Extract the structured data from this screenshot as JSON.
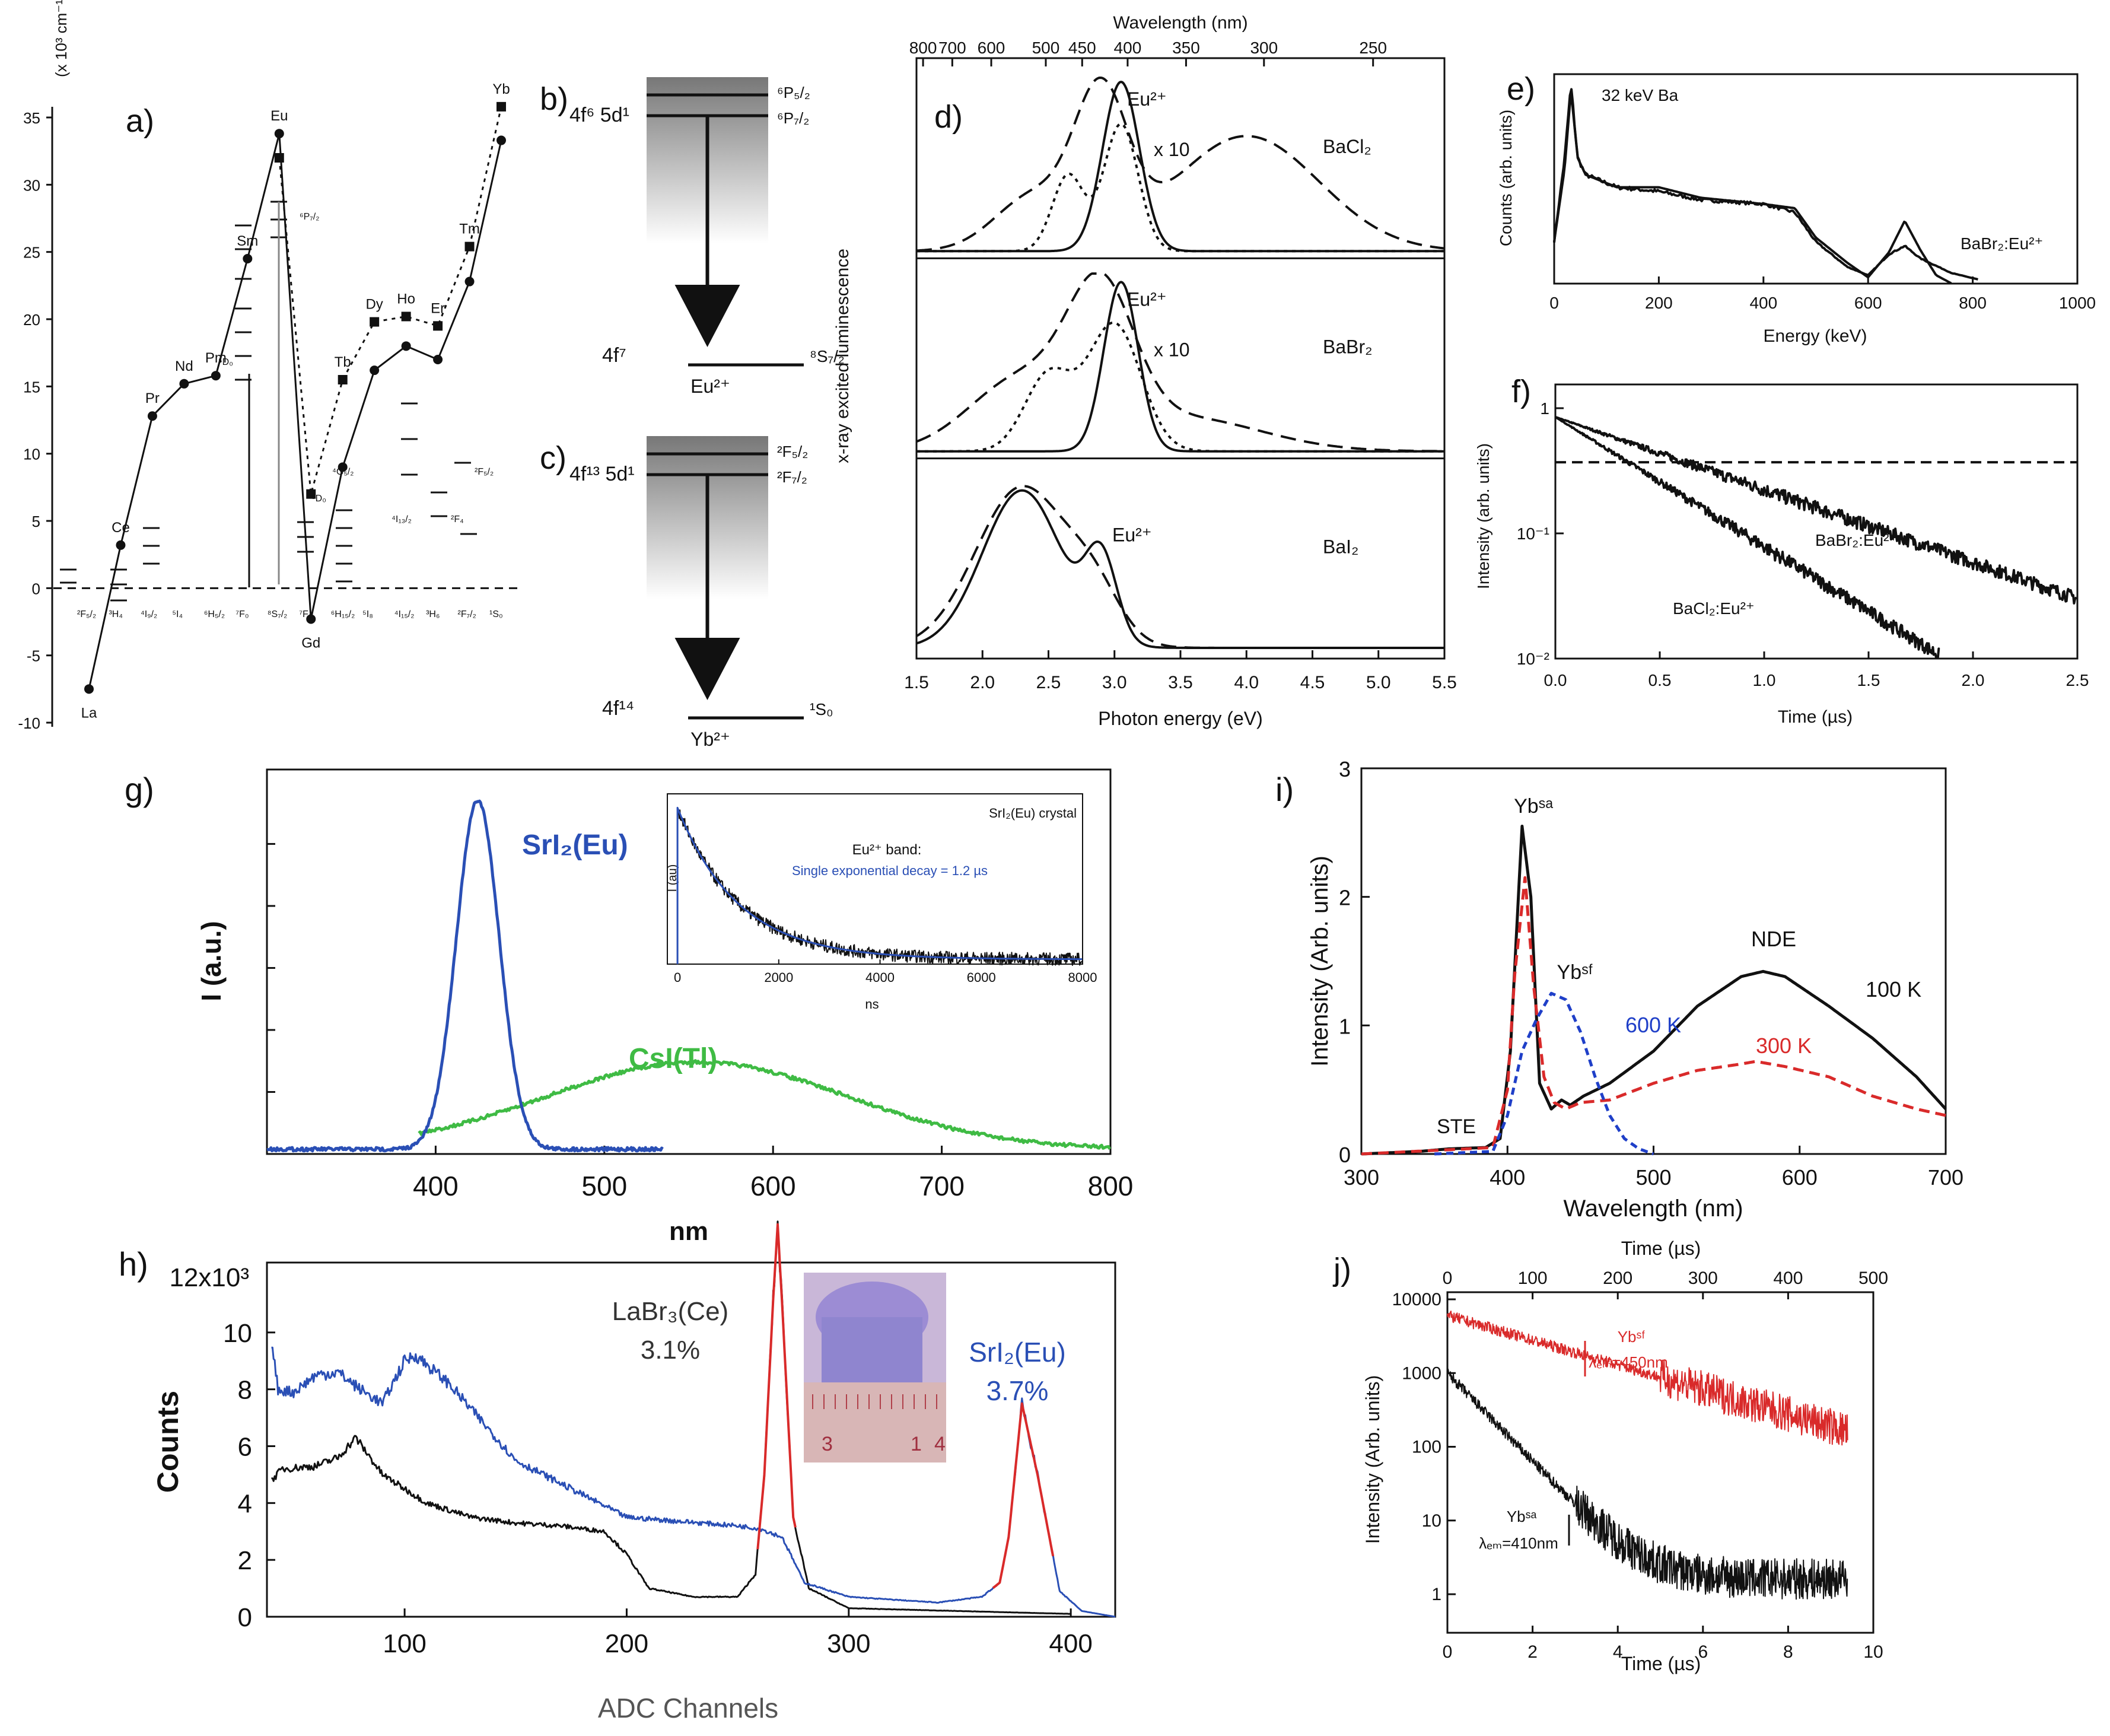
{
  "colors": {
    "black": "#111111",
    "blue": "#2a4fb5",
    "green": "#3fbb44",
    "red": "#d92a2a",
    "dblue": "#1f3fc8"
  },
  "chart_data": [
    {
      "id": "a",
      "type": "line",
      "panel": "a)",
      "ylabel": "(x 10³ cm⁻¹)",
      "ylim": [
        -10,
        37
      ],
      "yticks": [
        -10,
        -5,
        0,
        5,
        10,
        15,
        20,
        25,
        30,
        35
      ],
      "series": [
        {
          "name": "circles",
          "marker": "circle",
          "style": "solid",
          "x": [
            0,
            1,
            2,
            3,
            4,
            5,
            6,
            7,
            8,
            9,
            10,
            11,
            12,
            13
          ],
          "values": [
            -7.5,
            3.2,
            12.8,
            15.2,
            15.8,
            24.5,
            33.8,
            -2.3,
            9.0,
            16.2,
            18.0,
            17.0,
            22.8,
            33.3
          ]
        },
        {
          "name": "squares",
          "marker": "square",
          "style": "dotted",
          "x": [
            6,
            7,
            8,
            9,
            10,
            11,
            12,
            13
          ],
          "values": [
            32.0,
            7.0,
            15.5,
            19.8,
            20.2,
            19.5,
            25.4,
            35.8
          ]
        }
      ],
      "elements": [
        "La",
        "Ce",
        "Pr",
        "Nd",
        "Pm",
        "Sm",
        "Eu",
        "Gd",
        "Tb",
        "Dy",
        "Ho",
        "Er",
        "Tm",
        "Yb"
      ],
      "ground_terms": [
        "²F₅/₂",
        "³H₄",
        "⁴I₉/₂",
        "⁵I₄",
        "⁶H₅/₂",
        "⁷F₀",
        "⁸S₇/₂",
        "⁷F₆",
        "⁶H₁₅/₂",
        "⁵I₈",
        "⁴I₁₅/₂",
        "³H₆",
        "²F₇/₂",
        "¹S₀"
      ],
      "level_labels": [
        "⁶P₇/₂",
        "⁵D₀",
        "⁵D₀",
        "⁴G₅/₂",
        "²F₅/₂",
        "⁴I₁₃/₂",
        "²F₄"
      ]
    },
    {
      "id": "b",
      "type": "diagram",
      "panel": "b)",
      "upper": "4f⁶ 5d¹",
      "lower": "4f⁷",
      "ion": "Eu²⁺",
      "top_levels": [
        "⁶P₅/₂",
        "⁶P₇/₂"
      ],
      "ground": "⁸S₇/₂"
    },
    {
      "id": "c",
      "type": "diagram",
      "panel": "c)",
      "upper": "4f¹³ 5d¹",
      "lower": "4f¹⁴",
      "ion": "Yb²⁺",
      "top_levels": [
        "²F₅/₂",
        "²F₇/₂"
      ],
      "ground": "¹S₀"
    },
    {
      "id": "d",
      "type": "line",
      "panel": "d)",
      "title": "Wavelength  (nm)",
      "xlabel": "Photon energy  (eV)",
      "ylabel": "x-ray excited luminescence",
      "xlim": [
        1.5,
        5.5
      ],
      "xticks": [
        1.5,
        2.0,
        2.5,
        3.0,
        3.5,
        4.0,
        4.5,
        5.0,
        5.5
      ],
      "top_ticks": [
        800,
        700,
        600,
        500,
        450,
        400,
        350,
        300,
        250
      ],
      "subplots": [
        {
          "compound": "BaCl₂",
          "peak_label": "Eu²⁺",
          "scale_label": "x 10",
          "series": [
            {
              "name": "solid",
              "peaks": [
                [
                  3.05,
                  0.14,
                  1.0
                ]
              ]
            },
            {
              "name": "dashed",
              "peaks": [
                [
                  2.4,
                  0.3,
                  0.33
                ],
                [
                  2.9,
                  0.2,
                  0.85
                ],
                [
                  4.0,
                  0.55,
                  0.68
                ]
              ]
            },
            {
              "name": "dotted",
              "peaks": [
                [
                  2.65,
                  0.12,
                  0.45
                ],
                [
                  3.05,
                  0.13,
                  0.75
                ]
              ]
            }
          ]
        },
        {
          "compound": "BaBr₂",
          "peak_label": "Eu²⁺",
          "scale_label": "x 10",
          "series": [
            {
              "name": "solid",
              "peaks": [
                [
                  3.05,
                  0.13,
                  1.0
                ]
              ]
            },
            {
              "name": "dashed",
              "peaks": [
                [
                  2.3,
                  0.4,
                  0.42
                ],
                [
                  2.9,
                  0.25,
                  0.8
                ],
                [
                  3.5,
                  0.6,
                  0.2
                ]
              ]
            },
            {
              "name": "dotted",
              "peaks": [
                [
                  2.5,
                  0.18,
                  0.45
                ],
                [
                  3.0,
                  0.2,
                  0.75
                ]
              ]
            }
          ]
        },
        {
          "compound": "BaI₂",
          "peak_label": "Eu²⁺",
          "series": [
            {
              "name": "solid",
              "peaks": [
                [
                  2.3,
                  0.3,
                  0.95
                ],
                [
                  2.9,
                  0.12,
                  0.5
                ]
              ]
            },
            {
              "name": "dashed",
              "peaks": [
                [
                  2.3,
                  0.35,
                  0.97
                ],
                [
                  2.85,
                  0.2,
                  0.25
                ]
              ]
            }
          ]
        }
      ]
    },
    {
      "id": "e",
      "type": "line",
      "panel": "e)",
      "xlabel": "Energy  (keV)",
      "ylabel": "Counts  (arb. units)",
      "xlim": [
        0,
        1000
      ],
      "xticks": [
        0,
        200,
        400,
        600,
        800,
        1000
      ],
      "annotations": [
        "32 keV Ba",
        "BaBr₂:Eu²⁺"
      ],
      "series": [
        {
          "name": "measured",
          "x": [
            0,
            20,
            32,
            45,
            60,
            120,
            200,
            280,
            400,
            460,
            500,
            560,
            600,
            640,
            670,
            700,
            760,
            810
          ],
          "values": [
            0.2,
            0.6,
            0.95,
            0.6,
            0.52,
            0.46,
            0.44,
            0.4,
            0.38,
            0.34,
            0.2,
            0.08,
            0.04,
            0.14,
            0.18,
            0.12,
            0.05,
            0.02
          ]
        },
        {
          "name": "simulated",
          "x": [
            0,
            20,
            32,
            45,
            60,
            120,
            200,
            280,
            400,
            460,
            500,
            560,
            600,
            640,
            670,
            700,
            730,
            760
          ],
          "values": [
            0.2,
            0.55,
            0.92,
            0.6,
            0.52,
            0.46,
            0.46,
            0.41,
            0.38,
            0.36,
            0.22,
            0.1,
            0.03,
            0.15,
            0.3,
            0.16,
            0.04,
            0.0
          ]
        }
      ]
    },
    {
      "id": "f",
      "type": "line",
      "panel": "f)",
      "xlabel": "Time  (µs)",
      "ylabel": "Intensity  (arb. units)",
      "xlim": [
        0,
        2.5
      ],
      "yscale": "log",
      "ylim": [
        0.01,
        1
      ],
      "xticks": [
        0.0,
        0.5,
        1.0,
        1.5,
        2.0,
        2.5
      ],
      "yticks": [
        {
          "v": 1,
          "label": "1"
        },
        {
          "v": 0.1,
          "label": "10⁻¹"
        },
        {
          "v": 0.01,
          "label": "10⁻²"
        }
      ],
      "series": [
        {
          "name": "BaBr₂:Eu²⁺",
          "tau_us": 0.75
        },
        {
          "name": "BaCl₂:Eu²⁺",
          "tau_us": 0.42
        },
        {
          "name": "1/e level",
          "value": 0.37
        }
      ]
    },
    {
      "id": "g",
      "type": "line",
      "panel": "g)",
      "xlabel": "nm",
      "ylabel": "I (a.u.)",
      "xlim": [
        300,
        800
      ],
      "xticks": [
        400,
        500,
        600,
        700,
        800
      ],
      "series": [
        {
          "name": "SrI₂(Eu)",
          "peak_nm": 425,
          "fwhm_nm": 30,
          "height": 1.0
        },
        {
          "name": "CsI(Tl)",
          "peak_nm": 555,
          "fwhm_nm": 210,
          "height": 0.25
        }
      ],
      "inset": {
        "title": "SrI₂(Eu) crystal",
        "band": "Eu²⁺ band:",
        "note": "Single exponential decay = 1.2 µs",
        "xlabel": "ns",
        "ylabel": "I (au)",
        "xticks": [
          0,
          2000,
          4000,
          6000,
          8000
        ],
        "tau_ns": 1200
      }
    },
    {
      "id": "h",
      "type": "line",
      "panel": "h)",
      "xlabel": "ADC Channels",
      "ylabel": "Counts",
      "xlim": [
        38,
        420
      ],
      "ylim": [
        0,
        12000
      ],
      "xticks": [
        100,
        200,
        300,
        400
      ],
      "yticks": [
        0,
        2,
        4,
        6,
        8,
        10
      ],
      "ytop_label": "12x10³",
      "labels": [
        {
          "name": "LaBr₃(Ce)",
          "resolution": "3.1%"
        },
        {
          "name": "SrI₂(Eu)",
          "resolution": "3.7%"
        }
      ],
      "photo_ruler": [
        "3",
        "1",
        "4"
      ],
      "series": [
        {
          "name": "LaBr₃(Ce)",
          "x": [
            40,
            45,
            60,
            70,
            78,
            90,
            110,
            130,
            150,
            170,
            190,
            200,
            210,
            230,
            250,
            258,
            262,
            266,
            268,
            270,
            275,
            282,
            300,
            350,
            400
          ],
          "values": [
            4800,
            5200,
            5300,
            5600,
            6300,
            5000,
            4000,
            3500,
            3300,
            3200,
            3000,
            2200,
            1000,
            700,
            700,
            1500,
            5000,
            11200,
            13800,
            11000,
            3500,
            1000,
            300,
            200,
            100
          ]
        },
        {
          "name": "SrI₂(Eu)",
          "x": [
            40,
            43,
            50,
            60,
            70,
            80,
            90,
            100,
            105,
            120,
            150,
            200,
            250,
            260,
            270,
            280,
            300,
            340,
            360,
            368,
            372,
            378,
            385,
            395,
            405,
            420
          ],
          "values": [
            9700,
            8000,
            7900,
            8500,
            8600,
            8000,
            7500,
            9000,
            9200,
            8200,
            5500,
            3500,
            3200,
            3100,
            2800,
            1200,
            700,
            500,
            700,
            1200,
            2800,
            7500,
            5000,
            900,
            200,
            0
          ]
        }
      ]
    },
    {
      "id": "i",
      "type": "line",
      "panel": "i)",
      "xlabel": "Wavelength (nm)",
      "ylabel": "Intensity (Arb. units)",
      "xlim": [
        300,
        700
      ],
      "ylim": [
        0,
        3
      ],
      "xticks": [
        300,
        400,
        500,
        600,
        700
      ],
      "yticks": [
        0,
        1,
        2,
        3
      ],
      "annotations": [
        "Ybˢᵃ",
        "Ybˢᶠ",
        "NDE",
        "STE",
        "100 K",
        "600 K",
        "300 K"
      ],
      "series": [
        {
          "name": "100 K",
          "x": [
            300,
            340,
            360,
            385,
            395,
            402,
            410,
            416,
            422,
            430,
            437,
            443,
            452,
            470,
            500,
            530,
            560,
            575,
            590,
            620,
            650,
            680,
            700
          ],
          "values": [
            0,
            0.02,
            0.04,
            0.05,
            0.12,
            0.8,
            2.55,
            2.0,
            0.55,
            0.35,
            0.42,
            0.38,
            0.45,
            0.55,
            0.8,
            1.15,
            1.38,
            1.42,
            1.38,
            1.15,
            0.9,
            0.6,
            0.35
          ]
        },
        {
          "name": "300 K",
          "x": [
            300,
            390,
            400,
            405,
            412,
            418,
            425,
            432,
            440,
            450,
            470,
            500,
            530,
            560,
            570,
            590,
            620,
            650,
            680,
            700
          ],
          "values": [
            0,
            0.05,
            0.5,
            1.4,
            2.15,
            1.3,
            0.6,
            0.4,
            0.35,
            0.4,
            0.42,
            0.55,
            0.65,
            0.7,
            0.72,
            0.68,
            0.6,
            0.45,
            0.35,
            0.3
          ]
        },
        {
          "name": "600 K",
          "x": [
            350,
            390,
            400,
            410,
            420,
            430,
            440,
            450,
            460,
            470,
            480,
            490,
            500
          ],
          "values": [
            0,
            0.02,
            0.3,
            0.8,
            1.05,
            1.25,
            1.2,
            0.95,
            0.6,
            0.3,
            0.12,
            0.04,
            0
          ]
        }
      ]
    },
    {
      "id": "j",
      "type": "line",
      "panel": "j)",
      "xlabel": "Time (µs)",
      "top_xlabel": "Time (µs)",
      "ylabel": "Intensity (Arb. units)",
      "xlim": [
        0,
        10
      ],
      "top_xlim": [
        0,
        500
      ],
      "yscale": "log",
      "ylim": [
        0.3,
        10000
      ],
      "xticks": [
        0,
        2,
        4,
        6,
        8,
        10
      ],
      "top_xticks": [
        0,
        100,
        200,
        300,
        400,
        500
      ],
      "yticks": [
        1,
        10,
        100,
        1000,
        10000
      ],
      "annotations": [
        {
          "label": "Ybˢᶠ",
          "sub": "λₑₘ=450nm"
        },
        {
          "label": "Ybˢᵃ",
          "sub": "λₑₘ=410nm"
        }
      ],
      "series": [
        {
          "name": "Yb sf (450nm)",
          "start": 6000,
          "tau_us": 2.6,
          "end_at": 9.4
        },
        {
          "name": "Yb sa (410nm)",
          "start": 1000,
          "tau_us": 0.72,
          "floor": 1.6,
          "end_at": 9.4
        }
      ]
    }
  ]
}
